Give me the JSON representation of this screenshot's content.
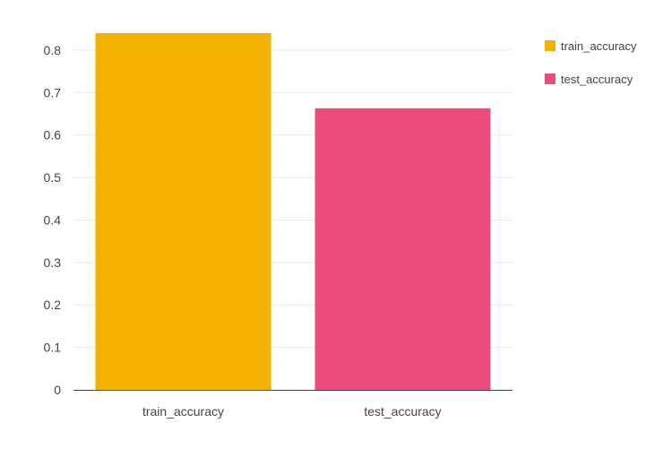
{
  "chart_data": {
    "type": "bar",
    "categories": [
      "train_accuracy",
      "test_accuracy"
    ],
    "values": [
      0.84,
      0.663
    ],
    "colors": [
      "#f3b200",
      "#ea4c7c"
    ],
    "yticks": [
      "0",
      "0.1",
      "0.2",
      "0.3",
      "0.4",
      "0.5",
      "0.6",
      "0.7",
      "0.8"
    ],
    "ylim": [
      0,
      0.88
    ],
    "grid": true,
    "legend": {
      "position": "top-right",
      "entries": [
        "train_accuracy",
        "test_accuracy"
      ]
    }
  }
}
